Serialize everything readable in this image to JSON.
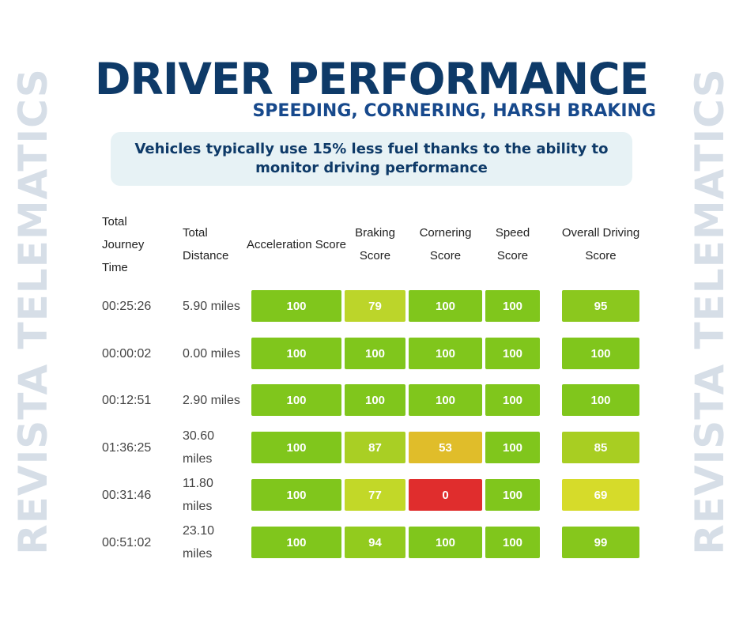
{
  "side_text": "REVISTA TELEMATICS",
  "header": {
    "title": "DRIVER PERFORMANCE",
    "subtitle": "SPEEDING, CORNERING, HARSH BRAKING"
  },
  "callout": "Vehicles typically use 15% less fuel thanks to the ability to monitor driving performance",
  "table": {
    "columns": [
      "Total Journey Time",
      "Total Distance",
      "Acceleration Score",
      "Braking Score",
      "Cornering Score",
      "Speed Score",
      "Overall Driving Score"
    ],
    "rows": [
      [
        "00:25:26",
        "5.90 miles",
        100,
        79,
        100,
        100,
        95
      ],
      [
        "00:00:02",
        "0.00 miles",
        100,
        100,
        100,
        100,
        100
      ],
      [
        "00:12:51",
        "2.90 miles",
        100,
        100,
        100,
        100,
        100
      ],
      [
        "01:36:25",
        "30.60 miles",
        100,
        87,
        53,
        100,
        85
      ],
      [
        "00:31:46",
        "11.80 miles",
        100,
        77,
        0,
        100,
        69
      ],
      [
        "00:51:02",
        "23.10 miles",
        100,
        94,
        100,
        100,
        99
      ]
    ],
    "cell_colors": [
      [
        null,
        null,
        "#80c61c",
        "#bcd52a",
        "#80c61c",
        "#80c61c",
        "#8bc81e"
      ],
      [
        null,
        null,
        "#80c61c",
        "#80c61c",
        "#80c61c",
        "#80c61c",
        "#80c61c"
      ],
      [
        null,
        null,
        "#80c61c",
        "#80c61c",
        "#80c61c",
        "#80c61c",
        "#80c61c"
      ],
      [
        null,
        null,
        "#80c61c",
        "#a9cf24",
        "#e0bd2a",
        "#80c61c",
        "#a8ce22"
      ],
      [
        null,
        null,
        "#80c61c",
        "#c2d828",
        "#e02d2d",
        "#80c61c",
        "#d6db2a"
      ],
      [
        null,
        null,
        "#80c61c",
        "#92cb1e",
        "#80c61c",
        "#80c61c",
        "#86c71c"
      ]
    ]
  }
}
